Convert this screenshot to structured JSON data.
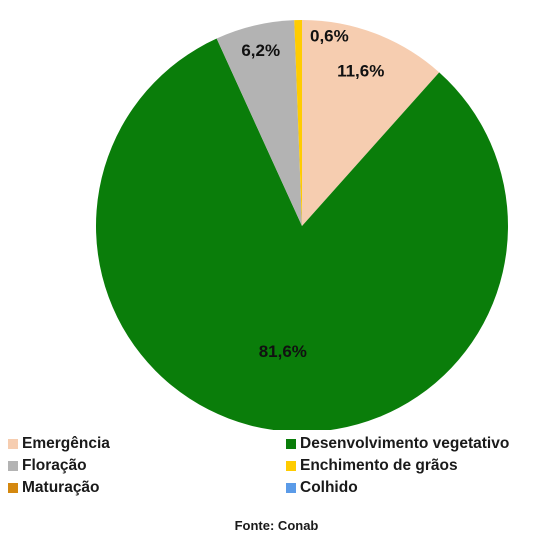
{
  "chart_data": {
    "type": "pie",
    "categories": [
      "Emergência",
      "Desenvolvimento vegetativo",
      "Floração",
      "Enchimento de grãos",
      "Maturação",
      "Colhido"
    ],
    "values": [
      11.6,
      81.6,
      6.2,
      0.6,
      0,
      0
    ],
    "data_labels": [
      "11,6%",
      "81,6%",
      "6,2%",
      "0,6%",
      "",
      ""
    ],
    "colors": [
      "#F6CDB0",
      "#0A7D0A",
      "#B3B3B3",
      "#FFCC00",
      "#D4880F",
      "#5B9BE8"
    ],
    "legend_position": "bottom",
    "source": "Fonte: Conab"
  }
}
